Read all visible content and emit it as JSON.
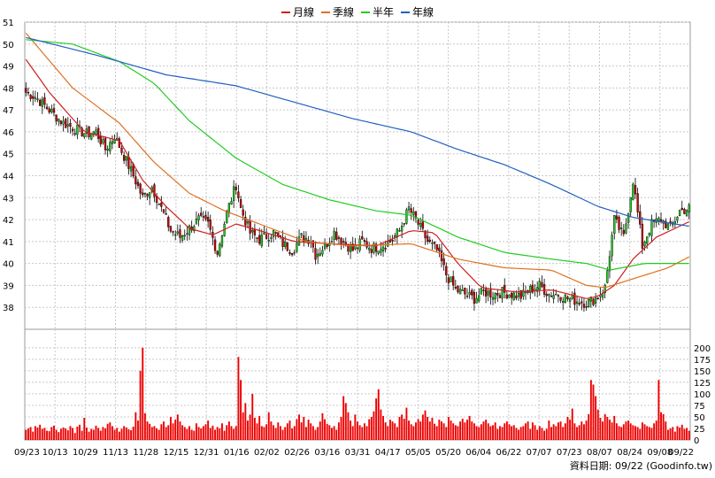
{
  "chart_data": {
    "type": "candlestick",
    "legend": [
      {
        "name": "月線",
        "color": "#cc2222"
      },
      {
        "name": "季線",
        "color": "#e07020"
      },
      {
        "name": "半年",
        "color": "#22cc22"
      },
      {
        "name": "年線",
        "color": "#2060c0"
      }
    ],
    "x_tick_labels": [
      "09/23",
      "10/13",
      "10/29",
      "11/13",
      "11/28",
      "12/15",
      "12/31",
      "01/16",
      "02/02",
      "02/26",
      "03/16",
      "03/31",
      "04/17",
      "05/05",
      "05/20",
      "06/04",
      "06/22",
      "07/07",
      "07/23",
      "08/07",
      "08/24",
      "09/08",
      "09/22"
    ],
    "price_axis": {
      "min": 37,
      "max": 51,
      "ticks": [
        38,
        39,
        40,
        41,
        42,
        43,
        44,
        45,
        46,
        47,
        48,
        49,
        50,
        51
      ]
    },
    "volume_axis": {
      "min": 0,
      "max": 240,
      "ticks": [
        0,
        25,
        50,
        75,
        100,
        125,
        150,
        175,
        200
      ]
    },
    "up_color": "#22cc22",
    "down_color": "#cc0000",
    "volume_color": "#ee0000",
    "close_path": [
      [
        0,
        47.8
      ],
      [
        4,
        47.6
      ],
      [
        8,
        47.2
      ],
      [
        12,
        46.8
      ],
      [
        16,
        46.4
      ],
      [
        22,
        46.1
      ],
      [
        26,
        45.9
      ],
      [
        30,
        46.0
      ],
      [
        34,
        45.2
      ],
      [
        38,
        45.8
      ],
      [
        42,
        44.9
      ],
      [
        46,
        44.0
      ],
      [
        50,
        43.0
      ],
      [
        54,
        43.5
      ],
      [
        58,
        42.5
      ],
      [
        62,
        41.5
      ],
      [
        66,
        41.2
      ],
      [
        70,
        41.6
      ],
      [
        74,
        42.0
      ],
      [
        78,
        41.8
      ],
      [
        82,
        40.5
      ],
      [
        86,
        42.3
      ],
      [
        90,
        43.6
      ],
      [
        92,
        42.5
      ],
      [
        96,
        41.4
      ],
      [
        100,
        41.1
      ],
      [
        106,
        41.4
      ],
      [
        110,
        40.9
      ],
      [
        114,
        40.6
      ],
      [
        118,
        41.2
      ],
      [
        122,
        41.1
      ],
      [
        124,
        40.4
      ],
      [
        128,
        40.8
      ],
      [
        132,
        41.4
      ],
      [
        136,
        41.0
      ],
      [
        140,
        40.6
      ],
      [
        144,
        41.0
      ],
      [
        148,
        40.7
      ],
      [
        152,
        40.8
      ],
      [
        156,
        41.0
      ],
      [
        160,
        41.5
      ],
      [
        164,
        42.5
      ],
      [
        168,
        41.8
      ],
      [
        172,
        41.0
      ],
      [
        176,
        40.6
      ],
      [
        180,
        39.5
      ],
      [
        184,
        38.8
      ],
      [
        188,
        38.6
      ],
      [
        192,
        38.4
      ],
      [
        196,
        38.7
      ],
      [
        200,
        38.6
      ],
      [
        204,
        38.7
      ],
      [
        208,
        38.6
      ],
      [
        212,
        38.5
      ],
      [
        216,
        38.8
      ],
      [
        220,
        39.0
      ],
      [
        224,
        38.6
      ],
      [
        228,
        38.6
      ],
      [
        232,
        38.4
      ],
      [
        236,
        38.3
      ],
      [
        240,
        38.2
      ],
      [
        244,
        38.4
      ],
      [
        248,
        38.9
      ],
      [
        252,
        42.0
      ],
      [
        256,
        41.2
      ],
      [
        260,
        43.8
      ],
      [
        264,
        40.8
      ],
      [
        268,
        41.8
      ],
      [
        272,
        42.0
      ],
      [
        276,
        41.6
      ],
      [
        280,
        42.4
      ],
      [
        284,
        42.5
      ]
    ],
    "ma": {
      "月線": [
        [
          0,
          49.3
        ],
        [
          10,
          47.8
        ],
        [
          25,
          46.0
        ],
        [
          40,
          45.6
        ],
        [
          50,
          43.8
        ],
        [
          60,
          42.6
        ],
        [
          70,
          41.6
        ],
        [
          80,
          41.3
        ],
        [
          90,
          41.8
        ],
        [
          100,
          41.5
        ],
        [
          115,
          41.0
        ],
        [
          130,
          40.9
        ],
        [
          150,
          40.8
        ],
        [
          165,
          41.5
        ],
        [
          175,
          41.4
        ],
        [
          185,
          40.0
        ],
        [
          195,
          38.9
        ],
        [
          210,
          38.7
        ],
        [
          225,
          38.8
        ],
        [
          240,
          38.4
        ],
        [
          245,
          38.5
        ],
        [
          252,
          39.0
        ],
        [
          260,
          40.2
        ],
        [
          270,
          41.2
        ],
        [
          284,
          41.9
        ]
      ],
      "季線": [
        [
          0,
          50.5
        ],
        [
          20,
          48.0
        ],
        [
          40,
          46.4
        ],
        [
          55,
          44.6
        ],
        [
          70,
          43.2
        ],
        [
          85,
          42.4
        ],
        [
          100,
          41.8
        ],
        [
          120,
          41.0
        ],
        [
          140,
          40.8
        ],
        [
          165,
          40.9
        ],
        [
          185,
          40.2
        ],
        [
          205,
          39.8
        ],
        [
          225,
          39.7
        ],
        [
          240,
          39.0
        ],
        [
          248,
          38.9
        ],
        [
          260,
          39.3
        ],
        [
          275,
          39.8
        ],
        [
          284,
          40.3
        ]
      ],
      "半年": [
        [
          0,
          50.2
        ],
        [
          20,
          50.0
        ],
        [
          40,
          49.2
        ],
        [
          55,
          48.2
        ],
        [
          70,
          46.5
        ],
        [
          90,
          44.8
        ],
        [
          110,
          43.6
        ],
        [
          130,
          42.9
        ],
        [
          150,
          42.4
        ],
        [
          165,
          42.2
        ],
        [
          185,
          41.2
        ],
        [
          205,
          40.5
        ],
        [
          225,
          40.2
        ],
        [
          240,
          40.0
        ],
        [
          250,
          39.7
        ],
        [
          265,
          40.0
        ],
        [
          284,
          40.0
        ]
      ],
      "年線": [
        [
          0,
          50.3
        ],
        [
          30,
          49.5
        ],
        [
          60,
          48.6
        ],
        [
          90,
          48.1
        ],
        [
          120,
          47.2
        ],
        [
          140,
          46.6
        ],
        [
          165,
          46.0
        ],
        [
          185,
          45.2
        ],
        [
          205,
          44.5
        ],
        [
          225,
          43.6
        ],
        [
          245,
          42.6
        ],
        [
          260,
          42.1
        ],
        [
          284,
          41.7
        ]
      ]
    },
    "volume_values": [
      22,
      25,
      28,
      18,
      30,
      27,
      33,
      24,
      26,
      20,
      19,
      28,
      31,
      22,
      17,
      24,
      27,
      25,
      21,
      30,
      26,
      15,
      29,
      33,
      20,
      48,
      27,
      18,
      24,
      22,
      31,
      26,
      20,
      28,
      25,
      35,
      38,
      30,
      22,
      26,
      18,
      24,
      30,
      27,
      23,
      21,
      29,
      60,
      42,
      150,
      200,
      58,
      40,
      35,
      28,
      30,
      25,
      22,
      34,
      40,
      28,
      32,
      50,
      36,
      44,
      55,
      40,
      32,
      28,
      24,
      30,
      22,
      20,
      36,
      28,
      25,
      30,
      34,
      42,
      26,
      31,
      22,
      28,
      25,
      36,
      20,
      32,
      40,
      30,
      24,
      30,
      180,
      130,
      60,
      80,
      42,
      55,
      100,
      48,
      36,
      52,
      30,
      28,
      34,
      60,
      40,
      32,
      26,
      38,
      30,
      22,
      28,
      36,
      42,
      25,
      30,
      45,
      55,
      38,
      50,
      28,
      44,
      36,
      30,
      22,
      28,
      40,
      58,
      45,
      35,
      32,
      26,
      30,
      22,
      38,
      50,
      95,
      80,
      60,
      42,
      30,
      55,
      40,
      32,
      28,
      36,
      30,
      45,
      50,
      62,
      90,
      110,
      66,
      52,
      38,
      30,
      44,
      40,
      36,
      28,
      50,
      55,
      46,
      70,
      42,
      34,
      30,
      38,
      45,
      40,
      55,
      64,
      50,
      40,
      48,
      35,
      30,
      44,
      40,
      36,
      28,
      50,
      42,
      36,
      32,
      30,
      40,
      46,
      38,
      44,
      52,
      40,
      36,
      30,
      28,
      34,
      40,
      44,
      36,
      30,
      32,
      38,
      24,
      30,
      28,
      36,
      40,
      34,
      30,
      32,
      26,
      22,
      28,
      30,
      36,
      40,
      24,
      38,
      32,
      22,
      30,
      26,
      20,
      24,
      42,
      28,
      34,
      30,
      38,
      40,
      28,
      36,
      50,
      44,
      68,
      36,
      28,
      32,
      40,
      34,
      42,
      56,
      130,
      120,
      95,
      66,
      48,
      40,
      56,
      50,
      44,
      38,
      52,
      36,
      30,
      28,
      34,
      40,
      42,
      36,
      32,
      30,
      28,
      24,
      38,
      34,
      30,
      28,
      26,
      36,
      42,
      130,
      60,
      56,
      40
    ]
  },
  "footer": {
    "source_label": "資料日期: 09/22  (Goodinfo.tw)"
  }
}
